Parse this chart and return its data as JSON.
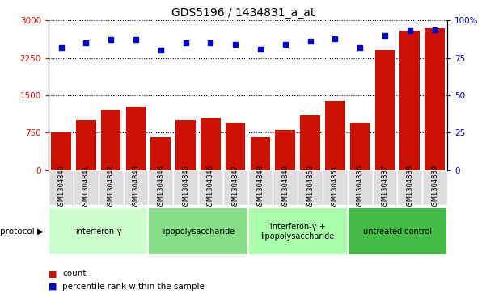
{
  "title": "GDS5196 / 1434831_a_at",
  "samples": [
    "GSM1304840",
    "GSM1304841",
    "GSM1304842",
    "GSM1304843",
    "GSM1304844",
    "GSM1304845",
    "GSM1304846",
    "GSM1304847",
    "GSM1304848",
    "GSM1304849",
    "GSM1304850",
    "GSM1304851",
    "GSM1304836",
    "GSM1304837",
    "GSM1304838",
    "GSM1304839"
  ],
  "counts": [
    750,
    1000,
    1200,
    1270,
    650,
    1000,
    1050,
    950,
    660,
    810,
    1100,
    1380,
    950,
    2400,
    2800,
    2850
  ],
  "percentiles": [
    82,
    85,
    87,
    87,
    80,
    85,
    85,
    84,
    81,
    84,
    86,
    88,
    82,
    90,
    93,
    94
  ],
  "groups": [
    {
      "label": "interferon-γ",
      "start": 0,
      "end": 3,
      "color": "#ccffcc"
    },
    {
      "label": "lipopolysaccharide",
      "start": 4,
      "end": 7,
      "color": "#88dd88"
    },
    {
      "label": "interferon-γ +\nlipopolysaccharide",
      "start": 8,
      "end": 11,
      "color": "#aaffaa"
    },
    {
      "label": "untreated control",
      "start": 12,
      "end": 15,
      "color": "#44bb44"
    }
  ],
  "ylim_left": [
    0,
    3000
  ],
  "ylim_right": [
    0,
    100
  ],
  "yticks_left": [
    0,
    750,
    1500,
    2250,
    3000
  ],
  "yticks_right": [
    0,
    25,
    50,
    75,
    100
  ],
  "bar_color": "#cc1100",
  "dot_color": "#0000cc",
  "bg_color": "#ffffff",
  "title_fontsize": 10,
  "sample_fontsize": 6,
  "group_fontsize": 7,
  "legend_fontsize": 7.5
}
